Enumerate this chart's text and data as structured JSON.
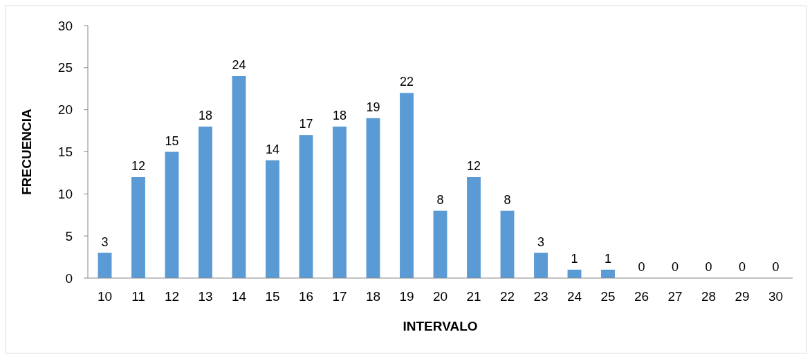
{
  "chart_data": {
    "type": "bar",
    "xlabel": "INTERVALO",
    "ylabel": "FRECUENCIA",
    "categories": [
      "10",
      "11",
      "12",
      "13",
      "14",
      "15",
      "16",
      "17",
      "18",
      "19",
      "20",
      "21",
      "22",
      "23",
      "24",
      "25",
      "26",
      "27",
      "28",
      "29",
      "30"
    ],
    "values": [
      3,
      12,
      15,
      18,
      24,
      14,
      17,
      18,
      19,
      22,
      8,
      12,
      8,
      3,
      1,
      1,
      0,
      0,
      0,
      0,
      0
    ],
    "color": "#5b9bd5",
    "ylim": [
      0,
      30
    ],
    "yticks": [
      0,
      5,
      10,
      15,
      20,
      25,
      30
    ],
    "data_labels": true,
    "grid": false
  }
}
